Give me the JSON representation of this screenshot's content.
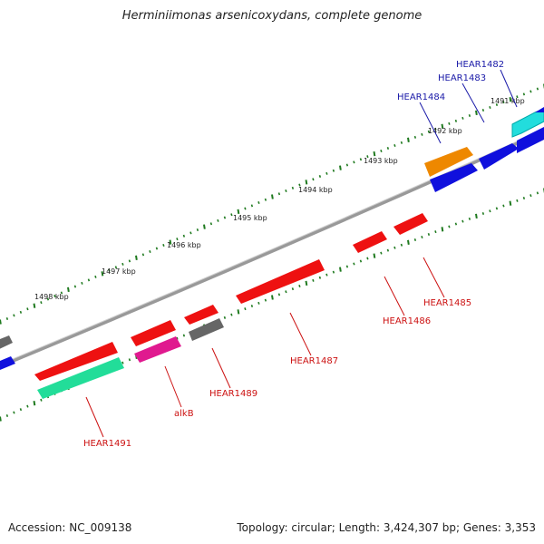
{
  "title": "Herminiimonas arsenicoxydans, complete genome",
  "footer": {
    "accession": "Accession: NC_009138",
    "summary": "Topology: circular; Length: 3,424,307 bp; Genes: 3,353"
  },
  "ticks": [
    "1491 kbp",
    "1492 kbp",
    "1493 kbp",
    "1494 kbp",
    "1495 kbp",
    "1496 kbp",
    "1497 kbp",
    "1498 kbp"
  ],
  "gene_labels": [
    {
      "name": "HEAR1482",
      "strand": "forward"
    },
    {
      "name": "HEAR1483",
      "strand": "forward"
    },
    {
      "name": "HEAR1484",
      "strand": "forward"
    },
    {
      "name": "HEAR1485",
      "strand": "reverse"
    },
    {
      "name": "HEAR1486",
      "strand": "reverse"
    },
    {
      "name": "HEAR1487",
      "strand": "reverse"
    },
    {
      "name": "HEAR1489",
      "strand": "reverse"
    },
    {
      "name": "alkB",
      "strand": "reverse"
    },
    {
      "name": "HEAR1491",
      "strand": "reverse"
    }
  ],
  "colors": {
    "backbone": "#888888",
    "forward_label": "#1a1aa8",
    "reverse_label": "#cc1111",
    "tick_dots": "#1f7a1f",
    "red": "#ee1111",
    "blue": "#1010dd",
    "orange": "#ee8800",
    "cyan": "#22dddd",
    "gray": "#666666",
    "magenta": "#e0198f",
    "spring_green": "#22dd99"
  }
}
